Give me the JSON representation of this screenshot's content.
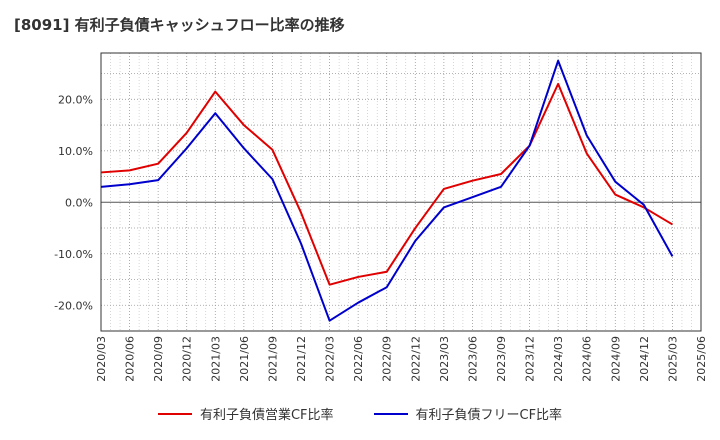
{
  "chart_data": {
    "type": "line",
    "title": "[8091]  有利子負債キャッシュフロー比率の推移",
    "xlabel": "",
    "ylabel": "",
    "ylim": [
      -25,
      29
    ],
    "yticks": [
      -20,
      -10,
      0,
      10,
      20
    ],
    "ytick_labels": [
      "-20.0%",
      "-10.0%",
      "0.0%",
      "10.0%",
      "20.0%"
    ],
    "x": [
      "2020/03",
      "2020/06",
      "2020/09",
      "2020/12",
      "2021/03",
      "2021/06",
      "2021/09",
      "2021/12",
      "2022/03",
      "2022/06",
      "2022/09",
      "2022/12",
      "2023/03",
      "2023/06",
      "2023/09",
      "2023/12",
      "2024/03",
      "2024/06",
      "2024/09",
      "2024/12",
      "2025/03",
      "2025/06"
    ],
    "grid": true,
    "legend_position": "bottom",
    "series": [
      {
        "name": "有利子負債営業CF比率",
        "color": "#e00000",
        "values": [
          5.8,
          6.2,
          7.5,
          13.5,
          21.5,
          15.0,
          10.2,
          -2.0,
          -16.0,
          -14.5,
          -13.5,
          -5.0,
          2.6,
          4.2,
          5.5,
          11.0,
          23.0,
          9.5,
          1.5,
          -1.0,
          -4.3,
          null
        ]
      },
      {
        "name": "有利子負債フリーCF比率",
        "color": "#0000cc",
        "values": [
          3.0,
          3.5,
          4.3,
          10.5,
          17.3,
          10.5,
          4.5,
          -8.0,
          -23.0,
          -19.5,
          -16.5,
          -7.5,
          -1.0,
          1.0,
          3.0,
          11.0,
          27.5,
          13.0,
          4.0,
          -0.5,
          -10.5,
          null
        ]
      }
    ]
  }
}
